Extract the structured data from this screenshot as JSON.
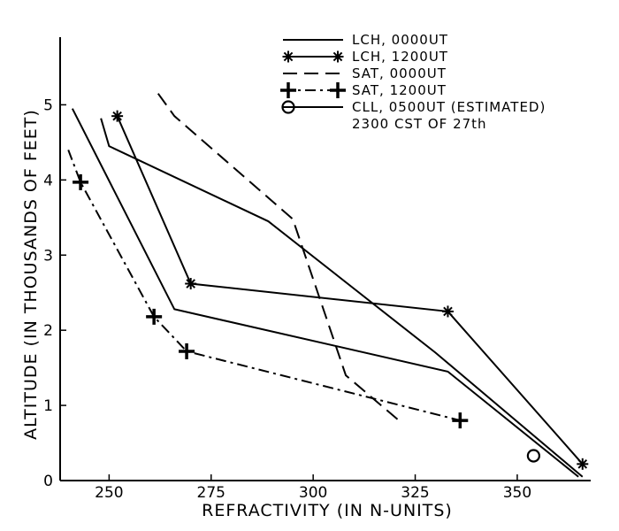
{
  "chart_data": {
    "type": "line",
    "title": "",
    "xlabel": "REFRACTIVITY (IN N-UNITS)",
    "ylabel": "ALTITUDE (IN THOUSANDS OF FEET)",
    "xlim": [
      238,
      368
    ],
    "ylim": [
      0,
      5.9
    ],
    "xticks": [
      250,
      275,
      300,
      325,
      350
    ],
    "yticks": [
      0,
      1,
      2,
      3,
      4,
      5
    ],
    "grid": false,
    "legend_position": "top-right",
    "series": [
      {
        "name": "LCH, 0000UT",
        "style": "solid",
        "marker": "none",
        "points": [
          [
            248,
            4.82
          ],
          [
            250,
            4.45
          ],
          [
            289,
            3.45
          ],
          [
            330,
            1.7
          ],
          [
            366,
            0.05
          ]
        ]
      },
      {
        "name": "LCH, 1200UT",
        "style": "solid",
        "marker": "star",
        "points": [
          [
            252,
            4.85
          ],
          [
            270,
            2.62
          ],
          [
            333,
            2.25
          ],
          [
            366,
            0.22
          ]
        ]
      },
      {
        "name": "SAT, 0000UT",
        "style": "dash",
        "marker": "none",
        "points": [
          [
            262,
            5.15
          ],
          [
            266,
            4.85
          ],
          [
            295,
            3.48
          ],
          [
            308,
            1.4
          ],
          [
            321,
            0.8
          ]
        ]
      },
      {
        "name": "SAT, 1200UT",
        "style": "dashdot",
        "marker": "plus",
        "points": [
          [
            240,
            4.4
          ],
          [
            243,
            3.97
          ],
          [
            261,
            2.18
          ],
          [
            269,
            1.72
          ],
          [
            336,
            0.8
          ]
        ]
      },
      {
        "name": "CLL, 0500UT (ESTIMATED)",
        "style": "solid",
        "marker": "circle",
        "points": [
          [
            241,
            4.95
          ],
          [
            266,
            2.28
          ],
          [
            333,
            1.45
          ],
          [
            365,
            0.05
          ]
        ],
        "end_marker_point": [
          354,
          0.33
        ]
      }
    ],
    "legend_note": "2300 CST OF 27th"
  }
}
